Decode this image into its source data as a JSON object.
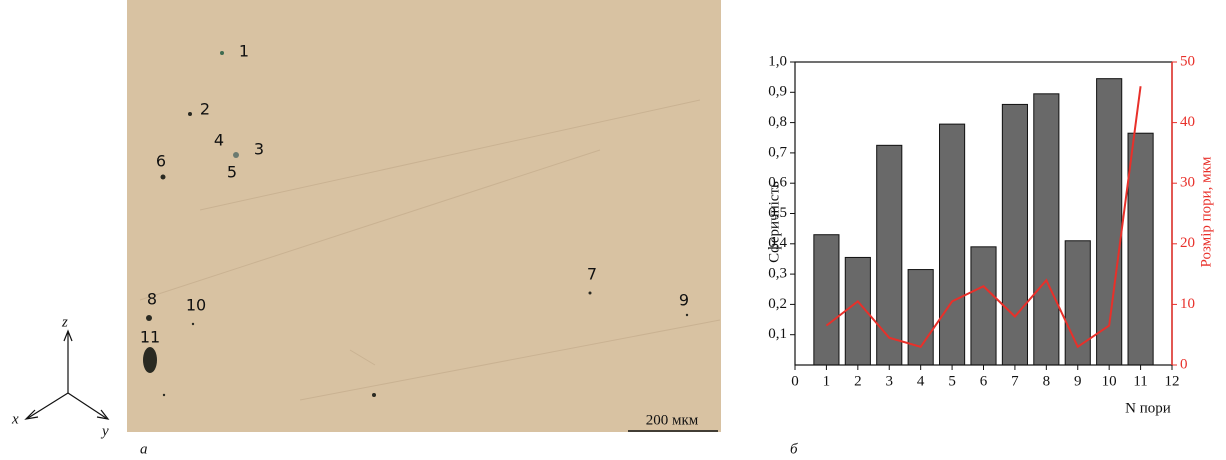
{
  "micrograph": {
    "pores": [
      "1",
      "2",
      "3",
      "4",
      "5",
      "6",
      "7",
      "8",
      "9",
      "10",
      "11"
    ],
    "scale_bar": "200 мкм",
    "panel_label": "а",
    "axes": {
      "x": "x",
      "y": "y",
      "z": "z"
    }
  },
  "chart_data": {
    "type": "bar",
    "panel_label": "б",
    "xlabel": "N пори",
    "ylabel": "Сферичність",
    "y2label": "Розмір пори, мкм",
    "x": [
      1,
      2,
      3,
      4,
      5,
      6,
      7,
      8,
      9,
      10,
      11
    ],
    "series": [
      {
        "color": "#696969",
        "values": [
          0.43,
          0.355,
          0.725,
          0.315,
          0.795,
          0.39,
          0.86,
          0.895,
          0.41,
          0.945,
          0.765
        ]
      },
      {
        "color": "#e8302a",
        "axis": "y2",
        "type": "line",
        "values": [
          6.5,
          10.5,
          4.5,
          3,
          10.5,
          13,
          8,
          14,
          3,
          6.5,
          46
        ]
      }
    ],
    "xlim": [
      0,
      12
    ],
    "xticks": [
      0,
      1,
      2,
      3,
      4,
      5,
      6,
      7,
      8,
      9,
      10,
      11,
      12
    ],
    "ylim": [
      0,
      1.0
    ],
    "yticks": [
      {
        "value": 0.1,
        "label": "0,1"
      },
      {
        "value": 0.2,
        "label": "0,2"
      },
      {
        "value": 0.3,
        "label": "0,3"
      },
      {
        "value": 0.4,
        "label": "0,4"
      },
      {
        "value": 0.5,
        "label": "0,5"
      },
      {
        "value": 0.6,
        "label": "0,6"
      },
      {
        "value": 0.7,
        "label": "0,7"
      },
      {
        "value": 0.8,
        "label": "0,8"
      },
      {
        "value": 0.9,
        "label": "0,9"
      },
      {
        "value": 1.0,
        "label": "1,0"
      }
    ],
    "y2lim": [
      0,
      50
    ],
    "y2ticks": [
      0,
      10,
      20,
      30,
      40,
      50
    ]
  }
}
